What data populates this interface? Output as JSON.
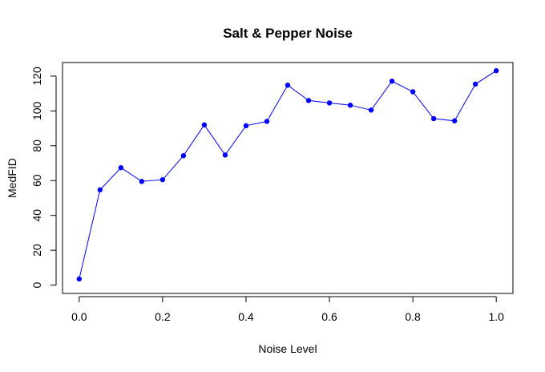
{
  "chart_data": {
    "type": "line",
    "title": "Salt & Pepper Noise",
    "xlabel": "Noise Level",
    "ylabel": "MedFID",
    "xlim": [
      -0.04,
      1.04
    ],
    "ylim": [
      -4.8,
      127.8
    ],
    "x_ticks": [
      0.0,
      0.2,
      0.4,
      0.6,
      0.8,
      1.0
    ],
    "x_tick_labels": [
      "0.0",
      "0.2",
      "0.4",
      "0.6",
      "0.8",
      "1.0"
    ],
    "y_ticks": [
      0,
      20,
      40,
      60,
      80,
      100,
      120
    ],
    "y_tick_labels": [
      "0",
      "20",
      "40",
      "60",
      "80",
      "100",
      "120"
    ],
    "grid": false,
    "series": [
      {
        "color": "#0000ff",
        "x": [
          0.0,
          0.05,
          0.1,
          0.15,
          0.2,
          0.25,
          0.3,
          0.35,
          0.4,
          0.45,
          0.5,
          0.55,
          0.6,
          0.65,
          0.7,
          0.75,
          0.8,
          0.85,
          0.9,
          0.95,
          1.0
        ],
        "values": [
          3.5,
          54.7,
          67.4,
          59.5,
          60.5,
          74.3,
          92.0,
          74.7,
          91.5,
          94.0,
          114.8,
          106.0,
          104.6,
          103.3,
          100.5,
          117.1,
          111.0,
          95.6,
          94.3,
          115.4,
          123.1
        ]
      }
    ]
  }
}
